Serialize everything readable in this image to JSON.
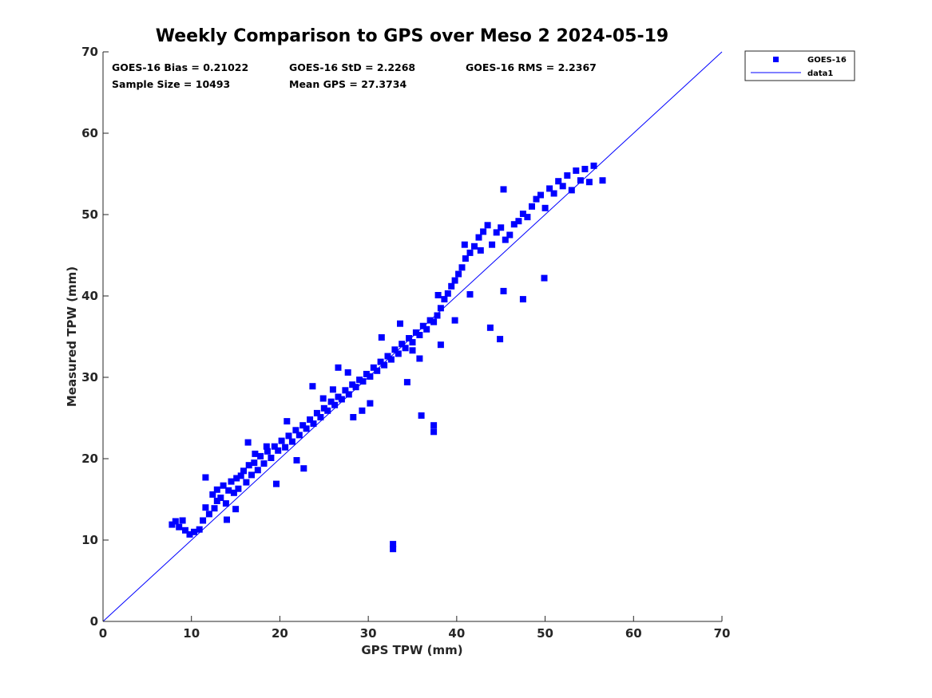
{
  "chart_data": {
    "type": "scatter",
    "title": "Weekly Comparison to GPS over Meso 2 2024-05-19",
    "xlabel": "GPS TPW (mm)",
    "ylabel": "Measured TPW (mm)",
    "xlim": [
      0,
      70
    ],
    "ylim": [
      0,
      70
    ],
    "xticks": [
      "0",
      "10",
      "20",
      "30",
      "40",
      "50",
      "60",
      "70"
    ],
    "yticks": [
      "0",
      "10",
      "20",
      "30",
      "40",
      "50",
      "60",
      "70"
    ],
    "grid": false,
    "legend_position": "outside-top-right",
    "stats": {
      "bias": "GOES-16 Bias = 0.21022",
      "std": "GOES-16 StD = 2.2268",
      "rms": "GOES-16 RMS = 2.2367",
      "sample_size": "Sample Size = 10493",
      "mean_gps": "Mean GPS = 27.3734"
    },
    "series": [
      {
        "name": "GOES-16",
        "marker": "square",
        "color": "#0000ff",
        "x": [
          7.8,
          8.2,
          8.6,
          9.0,
          9.3,
          9.8,
          10.3,
          10.9,
          11.3,
          11.6,
          12.0,
          12.4,
          12.6,
          12.9,
          13.3,
          13.6,
          13.9,
          14.2,
          14.5,
          14.8,
          15.1,
          15.3,
          15.6,
          15.9,
          16.2,
          16.5,
          16.8,
          17.1,
          17.5,
          17.8,
          18.2,
          18.6,
          19.0,
          19.4,
          19.8,
          20.2,
          20.6,
          21.0,
          21.4,
          21.8,
          22.2,
          22.6,
          23.0,
          23.4,
          23.8,
          24.2,
          24.6,
          25.0,
          25.4,
          25.8,
          26.2,
          26.6,
          27.0,
          27.4,
          27.8,
          28.2,
          28.6,
          29.0,
          29.4,
          29.8,
          30.2,
          30.6,
          31.0,
          31.4,
          31.8,
          32.2,
          32.6,
          33.0,
          33.4,
          33.8,
          34.2,
          34.6,
          35.0,
          35.4,
          35.8,
          36.2,
          36.6,
          37.0,
          37.4,
          37.8,
          38.2,
          38.6,
          39.0,
          39.4,
          39.8,
          40.2,
          40.6,
          41.0,
          41.5,
          42.0,
          42.5,
          43.0,
          43.5,
          44.0,
          44.5,
          45.0,
          45.5,
          46.0,
          46.5,
          47.0,
          47.5,
          48.0,
          48.5,
          49.0,
          49.5,
          50.0,
          50.5,
          51.0,
          51.5,
          52.0,
          52.5,
          53.0,
          53.5,
          54.0,
          54.5,
          55.0,
          55.5,
          56.5,
          32.8,
          32.8,
          36.0,
          37.4,
          37.4,
          45.3,
          47.5,
          44.9,
          49.9,
          43.8,
          45.3,
          16.4,
          12.9,
          23.7,
          26.6,
          20.8,
          18.5,
          33.6,
          35.0,
          39.8,
          42.7,
          41.5,
          15.0,
          17.2,
          22.7,
          28.3,
          31.5,
          24.9,
          27.7,
          30.2,
          34.4,
          38.2,
          40.9,
          19.6,
          21.9,
          26.0,
          29.3,
          35.8,
          37.9,
          14.0,
          11.6
        ],
        "y": [
          11.9,
          12.3,
          11.6,
          12.4,
          11.2,
          10.7,
          11.0,
          11.3,
          12.4,
          14.0,
          13.2,
          15.6,
          13.9,
          14.8,
          15.2,
          16.7,
          14.5,
          16.1,
          17.2,
          15.8,
          17.6,
          16.3,
          17.9,
          18.5,
          17.1,
          19.2,
          18.0,
          19.5,
          18.6,
          20.3,
          19.4,
          20.9,
          20.1,
          21.5,
          21.0,
          22.2,
          21.4,
          22.8,
          22.1,
          23.5,
          22.9,
          24.1,
          23.7,
          24.8,
          24.3,
          25.6,
          25.1,
          26.2,
          25.9,
          27.0,
          26.6,
          27.6,
          27.3,
          28.4,
          27.9,
          29.1,
          28.8,
          29.7,
          29.5,
          30.4,
          30.1,
          31.2,
          30.8,
          31.9,
          31.5,
          32.6,
          32.2,
          33.4,
          32.9,
          34.1,
          33.6,
          34.8,
          34.3,
          35.5,
          35.2,
          36.3,
          35.9,
          37.0,
          36.8,
          37.6,
          38.5,
          39.6,
          40.3,
          41.2,
          41.9,
          42.7,
          43.5,
          44.6,
          45.3,
          46.1,
          47.2,
          47.9,
          48.7,
          46.3,
          47.8,
          48.4,
          46.9,
          47.5,
          48.8,
          49.2,
          50.1,
          49.7,
          51.0,
          51.9,
          52.4,
          50.8,
          53.2,
          52.6,
          54.1,
          53.5,
          54.8,
          53.0,
          55.4,
          54.2,
          55.6,
          54.0,
          56.0,
          54.2,
          9.5,
          8.9,
          25.3,
          24.1,
          23.3,
          40.6,
          39.6,
          34.7,
          42.2,
          36.1,
          53.1,
          22.0,
          16.2,
          28.9,
          31.2,
          24.6,
          21.5,
          36.6,
          33.3,
          37.0,
          45.6,
          40.2,
          13.8,
          20.6,
          18.8,
          25.1,
          34.9,
          27.4,
          30.6,
          26.8,
          29.4,
          34.0,
          46.3,
          16.9,
          19.8,
          28.5,
          25.9,
          32.3,
          40.1,
          12.5,
          17.7
        ]
      },
      {
        "name": "data1",
        "type": "line",
        "color": "#0000ff",
        "x": [
          0,
          70
        ],
        "y": [
          0,
          70
        ]
      }
    ]
  }
}
